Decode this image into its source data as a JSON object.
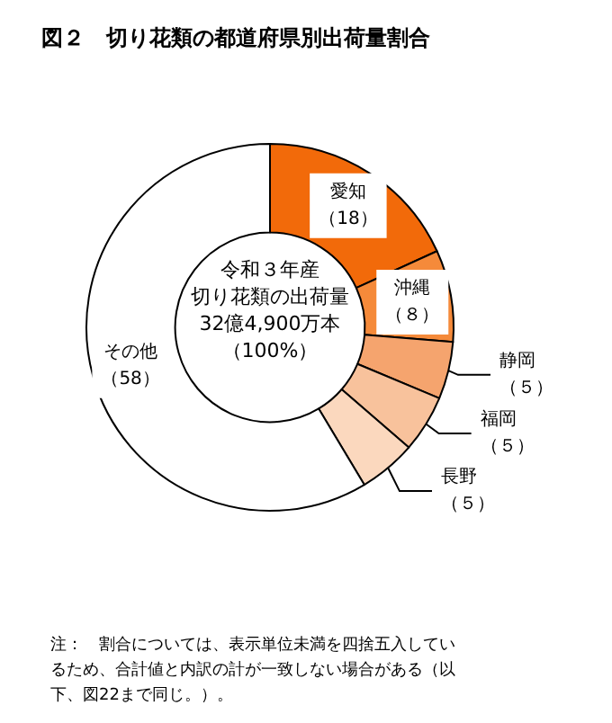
{
  "chart_data": {
    "type": "donut",
    "title": "図２　切り花類の都道府県別出荷量割合",
    "categories": [
      "愛知",
      "沖縄",
      "静岡",
      "福岡",
      "長野",
      "その他"
    ],
    "values": [
      18,
      8,
      5,
      5,
      5,
      58
    ],
    "value_labels": [
      "（18）",
      "（８）",
      "（５）",
      "（５）",
      "（５）",
      "（58）"
    ],
    "colors": [
      "#f26a0a",
      "#f58a3a",
      "#f5a46e",
      "#f8c29c",
      "#fbd8be",
      "#ffffff"
    ],
    "annotations": [
      "令和３年産",
      "切り花類の出荷量",
      "32億4,900万本",
      "（100%）",
      "注：　割合については、表示単位未満を四捨五入しているため、合計値と内訳の計が一致しない場合がある（以下、図22まで同じ。）。"
    ],
    "legend": false
  }
}
